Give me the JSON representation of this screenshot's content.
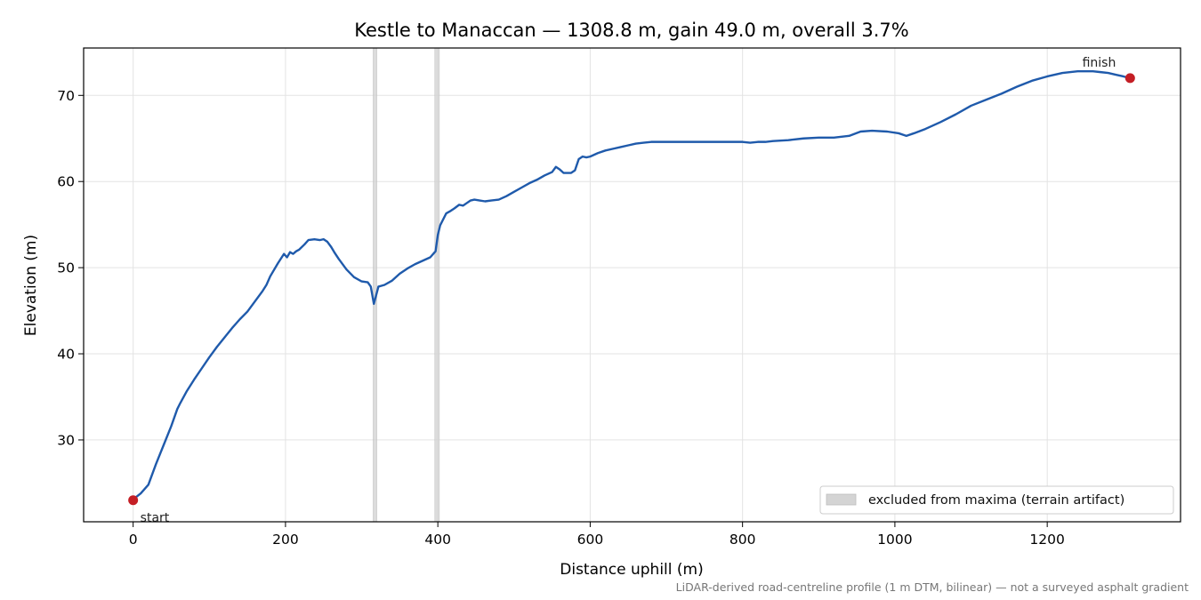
{
  "chart_data": {
    "type": "line",
    "title": "Kestle to Manaccan — 1308.8 m, gain 49.0 m, overall 3.7%",
    "xlabel": "Distance uphill (m)",
    "ylabel": "Elevation (m)",
    "xlim": [
      -65,
      1375
    ],
    "ylim": [
      20.5,
      75.5
    ],
    "xticks": [
      0,
      200,
      400,
      600,
      800,
      1000,
      1200
    ],
    "yticks": [
      30,
      40,
      50,
      60,
      70
    ],
    "grid": true,
    "legend_position": "lower-right",
    "line_color": "#1f5aab",
    "marker_color": "#c41e25",
    "band_color": "#d4d4d4",
    "series": [
      {
        "x": [
          0,
          10,
          20,
          25,
          30,
          40,
          50,
          58,
          62,
          70,
          80,
          90,
          100,
          110,
          120,
          130,
          135,
          140,
          150,
          160,
          170,
          175,
          180,
          190,
          198,
          202,
          206,
          210,
          214,
          218,
          225,
          230,
          238,
          245,
          250,
          255,
          260,
          264,
          270,
          280,
          290,
          300,
          308,
          312,
          316,
          319,
          322,
          326,
          330,
          340,
          350,
          360,
          370,
          380,
          390,
          397,
          400,
          403,
          407,
          411,
          417,
          422,
          428,
          433,
          438,
          443,
          448,
          455,
          462,
          470,
          480,
          490,
          500,
          510,
          520,
          530,
          540,
          550,
          555,
          560,
          565,
          570,
          575,
          580,
          585,
          590,
          595,
          600,
          610,
          620,
          630,
          640,
          650,
          660,
          670,
          680,
          690,
          700,
          720,
          740,
          760,
          780,
          800,
          810,
          820,
          830,
          840,
          860,
          880,
          900,
          920,
          940,
          955,
          970,
          990,
          1005,
          1015,
          1025,
          1040,
          1060,
          1080,
          1100,
          1120,
          1140,
          1160,
          1180,
          1200,
          1220,
          1240,
          1260,
          1270,
          1280,
          1290,
          1300,
          1308.8
        ],
        "y": [
          23.1,
          23.8,
          24.8,
          26.0,
          27.2,
          29.4,
          31.6,
          33.6,
          34.3,
          35.6,
          37.0,
          38.3,
          39.6,
          40.8,
          41.9,
          43.0,
          43.5,
          44.0,
          44.9,
          46.1,
          47.3,
          48.0,
          49.0,
          50.5,
          51.6,
          51.2,
          51.8,
          51.6,
          51.9,
          52.1,
          52.7,
          53.2,
          53.3,
          53.2,
          53.3,
          53.0,
          52.4,
          51.8,
          51.0,
          49.8,
          48.9,
          48.4,
          48.3,
          47.8,
          45.8,
          46.8,
          47.8,
          47.9,
          48.0,
          48.5,
          49.3,
          49.9,
          50.4,
          50.8,
          51.2,
          51.9,
          53.8,
          54.9,
          55.6,
          56.3,
          56.6,
          56.9,
          57.3,
          57.2,
          57.5,
          57.8,
          57.9,
          57.8,
          57.7,
          57.8,
          57.9,
          58.3,
          58.8,
          59.3,
          59.8,
          60.2,
          60.7,
          61.1,
          61.7,
          61.4,
          61.0,
          61.0,
          61.0,
          61.3,
          62.6,
          62.9,
          62.8,
          62.9,
          63.3,
          63.6,
          63.8,
          64.0,
          64.2,
          64.4,
          64.5,
          64.6,
          64.6,
          64.6,
          64.6,
          64.6,
          64.6,
          64.6,
          64.6,
          64.5,
          64.6,
          64.6,
          64.7,
          64.8,
          65.0,
          65.1,
          65.1,
          65.3,
          65.8,
          65.9,
          65.8,
          65.6,
          65.3,
          65.6,
          66.1,
          66.9,
          67.8,
          68.8,
          69.5,
          70.2,
          71.0,
          71.7,
          72.2,
          72.6,
          72.8,
          72.8,
          72.7,
          72.6,
          72.4,
          72.2,
          72.0
        ]
      }
    ],
    "markers": [
      {
        "x": 0,
        "y": 23.0,
        "label": "start"
      },
      {
        "x": 1308.8,
        "y": 72.0,
        "label": "finish"
      }
    ],
    "excluded_bands": [
      [
        315,
        320
      ],
      [
        396,
        402
      ]
    ],
    "legend_entry": "excluded from maxima (terrain artifact)",
    "footnote": "LiDAR-derived road-centreline profile (1 m DTM, bilinear) — not a surveyed asphalt gradient"
  }
}
